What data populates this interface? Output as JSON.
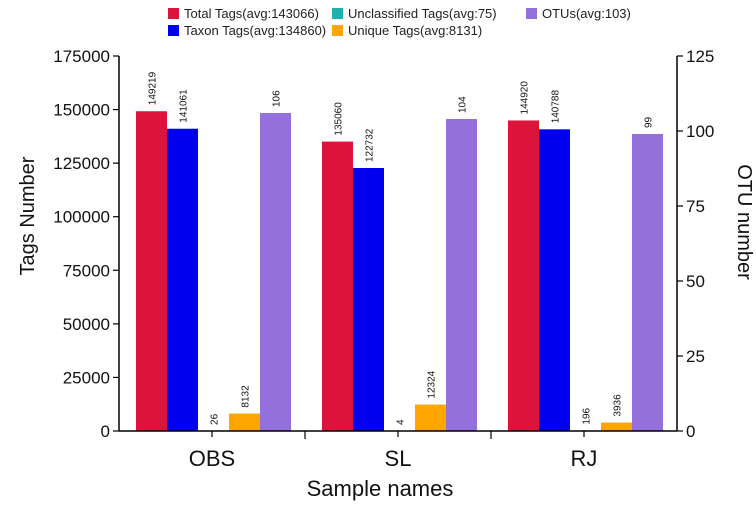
{
  "chart_data": {
    "type": "bar",
    "categories": [
      "OBS",
      "SL",
      "RJ"
    ],
    "xlabel": "Sample names",
    "ylabel": "Tags Number",
    "y2label": "OTU number",
    "ylim": [
      0,
      175000
    ],
    "y2lim": [
      0,
      125
    ],
    "yticks": [
      "0",
      "25000",
      "50000",
      "75000",
      "100000",
      "125000",
      "150000",
      "175000"
    ],
    "y2ticks": [
      "0",
      "25",
      "50",
      "75",
      "100",
      "125"
    ],
    "legend_position": "top",
    "series": [
      {
        "name": "Total Tags(avg:143066)",
        "axis": "left",
        "color": "#DC143C",
        "values": [
          149219,
          135060,
          144920
        ],
        "labels": [
          "149219",
          "135060",
          "144920"
        ]
      },
      {
        "name": "Taxon Tags(avg:134860)",
        "axis": "left",
        "color": "#0000EE",
        "values": [
          141061,
          122732,
          140788
        ],
        "labels": [
          "141061",
          "122732",
          "140788"
        ]
      },
      {
        "name": "Unclassified Tags(avg:75)",
        "axis": "left",
        "color": "#20B2AA",
        "values": [
          26,
          4,
          196
        ],
        "labels": [
          "26",
          "4",
          "196"
        ]
      },
      {
        "name": "Unique Tags(avg:8131)",
        "axis": "left",
        "color": "#FFA500",
        "values": [
          8132,
          12324,
          3936
        ],
        "labels": [
          "8132",
          "12324",
          "3936"
        ]
      },
      {
        "name": "OTUs(avg:103)",
        "axis": "right",
        "color": "#9370DB",
        "values": [
          106,
          104,
          99
        ],
        "labels": [
          "106",
          "104",
          "99"
        ]
      }
    ]
  }
}
